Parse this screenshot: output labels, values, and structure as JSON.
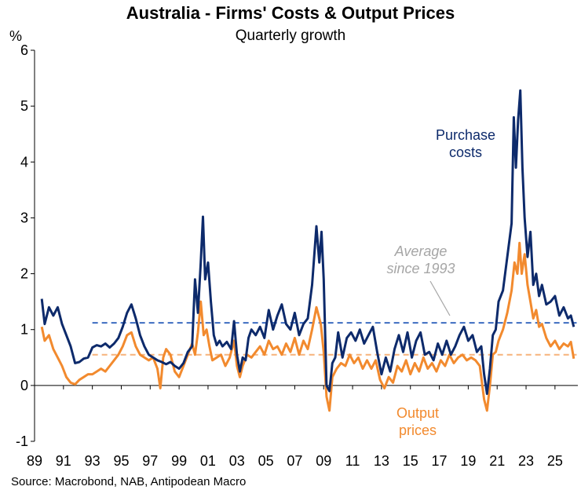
{
  "chart_data": {
    "type": "line",
    "title": "Australia - Firms' Costs & Output Prices",
    "subtitle": "Quarterly growth",
    "ylabel": "%",
    "xlabel": "",
    "ylim": [
      -1,
      6
    ],
    "xlim": [
      1989.0,
      2026.8
    ],
    "yticks": [
      "6",
      "5",
      "4",
      "3",
      "2",
      "1",
      "0",
      "-1"
    ],
    "xticks": [
      "89",
      "91",
      "93",
      "95",
      "97",
      "99",
      "01",
      "03",
      "05",
      "07",
      "09",
      "11",
      "13",
      "15",
      "17",
      "19",
      "21",
      "23",
      "25"
    ],
    "grid": false,
    "source": "Source: Macrobond, NAB, Antipodean Macro",
    "colors": {
      "purchase": "#0d2a6b",
      "output": "#f28a2e",
      "purchase_avg": "#3d6cc0",
      "output_avg": "#f6b27a",
      "annotation": "#a6a6a6"
    },
    "annotations": {
      "purchase_label": [
        "Purchase",
        "costs"
      ],
      "output_label": [
        "Output",
        "prices"
      ],
      "average_label": [
        "Average",
        "since 1993"
      ]
    },
    "averages": {
      "purchase_costs": {
        "value": 1.12,
        "x_start": 1993.0,
        "x_end": 2026.5
      },
      "output_prices": {
        "value": 0.55,
        "x_start": 1993.0,
        "x_end": 2026.5
      }
    },
    "series": [
      {
        "name": "Purchase costs",
        "points": [
          [
            1989.5,
            1.55
          ],
          [
            1989.7,
            1.1
          ],
          [
            1990.0,
            1.4
          ],
          [
            1990.3,
            1.25
          ],
          [
            1990.6,
            1.4
          ],
          [
            1990.9,
            1.1
          ],
          [
            1991.2,
            0.9
          ],
          [
            1991.5,
            0.7
          ],
          [
            1991.8,
            0.4
          ],
          [
            1992.1,
            0.42
          ],
          [
            1992.4,
            0.48
          ],
          [
            1992.7,
            0.5
          ],
          [
            1993.0,
            0.68
          ],
          [
            1993.3,
            0.72
          ],
          [
            1993.6,
            0.7
          ],
          [
            1993.9,
            0.75
          ],
          [
            1994.2,
            0.68
          ],
          [
            1994.5,
            0.75
          ],
          [
            1994.8,
            0.85
          ],
          [
            1995.1,
            1.05
          ],
          [
            1995.4,
            1.3
          ],
          [
            1995.7,
            1.45
          ],
          [
            1996.0,
            1.2
          ],
          [
            1996.3,
            0.9
          ],
          [
            1996.6,
            0.7
          ],
          [
            1996.9,
            0.55
          ],
          [
            1997.2,
            0.5
          ],
          [
            1997.5,
            0.45
          ],
          [
            1997.8,
            0.42
          ],
          [
            1998.1,
            0.38
          ],
          [
            1998.4,
            0.42
          ],
          [
            1998.7,
            0.35
          ],
          [
            1999.0,
            0.3
          ],
          [
            1999.3,
            0.4
          ],
          [
            1999.6,
            0.6
          ],
          [
            1999.9,
            0.7
          ],
          [
            2000.1,
            1.9
          ],
          [
            2000.3,
            1.3
          ],
          [
            2000.5,
            2.2
          ],
          [
            2000.65,
            3.02
          ],
          [
            2000.8,
            1.9
          ],
          [
            2001.0,
            2.2
          ],
          [
            2001.2,
            1.5
          ],
          [
            2001.4,
            0.9
          ],
          [
            2001.6,
            0.72
          ],
          [
            2001.8,
            0.8
          ],
          [
            2002.0,
            0.7
          ],
          [
            2002.3,
            0.78
          ],
          [
            2002.6,
            0.65
          ],
          [
            2002.8,
            1.15
          ],
          [
            2003.0,
            0.55
          ],
          [
            2003.2,
            0.25
          ],
          [
            2003.4,
            0.5
          ],
          [
            2003.6,
            0.45
          ],
          [
            2003.8,
            0.85
          ],
          [
            2004.0,
            1.0
          ],
          [
            2004.3,
            0.9
          ],
          [
            2004.6,
            1.05
          ],
          [
            2004.9,
            0.85
          ],
          [
            2005.2,
            1.35
          ],
          [
            2005.5,
            1.0
          ],
          [
            2005.8,
            1.25
          ],
          [
            2006.1,
            1.45
          ],
          [
            2006.4,
            1.1
          ],
          [
            2006.7,
            1.0
          ],
          [
            2007.0,
            1.3
          ],
          [
            2007.3,
            0.9
          ],
          [
            2007.6,
            1.1
          ],
          [
            2007.9,
            1.2
          ],
          [
            2008.2,
            1.8
          ],
          [
            2008.5,
            2.85
          ],
          [
            2008.7,
            2.2
          ],
          [
            2008.85,
            2.75
          ],
          [
            2009.0,
            1.9
          ],
          [
            2009.2,
            0.0
          ],
          [
            2009.4,
            -0.1
          ],
          [
            2009.6,
            0.4
          ],
          [
            2009.8,
            0.5
          ],
          [
            2010.0,
            0.95
          ],
          [
            2010.3,
            0.5
          ],
          [
            2010.6,
            0.85
          ],
          [
            2010.9,
            0.95
          ],
          [
            2011.2,
            0.8
          ],
          [
            2011.5,
            1.0
          ],
          [
            2011.8,
            0.75
          ],
          [
            2012.1,
            0.9
          ],
          [
            2012.4,
            1.05
          ],
          [
            2012.7,
            0.6
          ],
          [
            2013.0,
            0.2
          ],
          [
            2013.3,
            0.5
          ],
          [
            2013.6,
            0.25
          ],
          [
            2013.9,
            0.65
          ],
          [
            2014.2,
            0.9
          ],
          [
            2014.5,
            0.6
          ],
          [
            2014.8,
            0.95
          ],
          [
            2015.1,
            0.5
          ],
          [
            2015.4,
            0.8
          ],
          [
            2015.7,
            0.95
          ],
          [
            2016.0,
            0.55
          ],
          [
            2016.3,
            0.6
          ],
          [
            2016.6,
            0.45
          ],
          [
            2016.9,
            0.75
          ],
          [
            2017.2,
            0.55
          ],
          [
            2017.5,
            0.8
          ],
          [
            2017.8,
            0.55
          ],
          [
            2018.1,
            0.7
          ],
          [
            2018.4,
            0.9
          ],
          [
            2018.7,
            1.05
          ],
          [
            2019.0,
            0.8
          ],
          [
            2019.3,
            0.9
          ],
          [
            2019.6,
            0.6
          ],
          [
            2019.9,
            0.7
          ],
          [
            2020.1,
            0.2
          ],
          [
            2020.3,
            -0.15
          ],
          [
            2020.5,
            0.3
          ],
          [
            2020.7,
            0.9
          ],
          [
            2020.9,
            1.0
          ],
          [
            2021.1,
            1.5
          ],
          [
            2021.4,
            1.7
          ],
          [
            2021.7,
            2.3
          ],
          [
            2022.0,
            2.9
          ],
          [
            2022.15,
            4.8
          ],
          [
            2022.3,
            3.9
          ],
          [
            2022.45,
            4.75
          ],
          [
            2022.6,
            5.28
          ],
          [
            2022.75,
            3.9
          ],
          [
            2022.9,
            3.0
          ],
          [
            2023.1,
            2.3
          ],
          [
            2023.3,
            2.75
          ],
          [
            2023.5,
            1.8
          ],
          [
            2023.7,
            2.0
          ],
          [
            2023.9,
            1.6
          ],
          [
            2024.1,
            1.8
          ],
          [
            2024.4,
            1.45
          ],
          [
            2024.7,
            1.5
          ],
          [
            2025.0,
            1.6
          ],
          [
            2025.3,
            1.25
          ],
          [
            2025.6,
            1.4
          ],
          [
            2025.9,
            1.2
          ],
          [
            2026.1,
            1.25
          ],
          [
            2026.3,
            1.05
          ]
        ]
      },
      {
        "name": "Output prices",
        "points": [
          [
            1989.5,
            1.05
          ],
          [
            1989.7,
            0.8
          ],
          [
            1990.0,
            0.9
          ],
          [
            1990.3,
            0.65
          ],
          [
            1990.6,
            0.5
          ],
          [
            1990.9,
            0.35
          ],
          [
            1991.2,
            0.15
          ],
          [
            1991.5,
            0.05
          ],
          [
            1991.8,
            0.02
          ],
          [
            1992.1,
            0.1
          ],
          [
            1992.4,
            0.15
          ],
          [
            1992.7,
            0.2
          ],
          [
            1993.0,
            0.2
          ],
          [
            1993.3,
            0.25
          ],
          [
            1993.6,
            0.3
          ],
          [
            1993.9,
            0.25
          ],
          [
            1994.2,
            0.35
          ],
          [
            1994.5,
            0.45
          ],
          [
            1994.8,
            0.55
          ],
          [
            1995.1,
            0.7
          ],
          [
            1995.4,
            0.9
          ],
          [
            1995.7,
            0.95
          ],
          [
            1996.0,
            0.7
          ],
          [
            1996.3,
            0.55
          ],
          [
            1996.6,
            0.5
          ],
          [
            1996.9,
            0.45
          ],
          [
            1997.2,
            0.5
          ],
          [
            1997.5,
            0.3
          ],
          [
            1997.7,
            -0.05
          ],
          [
            1997.9,
            0.5
          ],
          [
            1998.1,
            0.65
          ],
          [
            1998.4,
            0.55
          ],
          [
            1998.7,
            0.25
          ],
          [
            1999.0,
            0.15
          ],
          [
            1999.3,
            0.35
          ],
          [
            1999.6,
            0.55
          ],
          [
            1999.9,
            0.75
          ],
          [
            2000.1,
            0.55
          ],
          [
            2000.3,
            0.95
          ],
          [
            2000.5,
            1.5
          ],
          [
            2000.7,
            0.9
          ],
          [
            2000.9,
            1.0
          ],
          [
            2001.1,
            0.7
          ],
          [
            2001.3,
            0.45
          ],
          [
            2001.6,
            0.5
          ],
          [
            2001.9,
            0.55
          ],
          [
            2002.2,
            0.35
          ],
          [
            2002.5,
            0.5
          ],
          [
            2002.8,
            0.8
          ],
          [
            2003.0,
            0.35
          ],
          [
            2003.2,
            0.15
          ],
          [
            2003.4,
            0.35
          ],
          [
            2003.7,
            0.55
          ],
          [
            2004.0,
            0.5
          ],
          [
            2004.3,
            0.6
          ],
          [
            2004.6,
            0.7
          ],
          [
            2004.9,
            0.55
          ],
          [
            2005.2,
            0.8
          ],
          [
            2005.5,
            0.65
          ],
          [
            2005.8,
            0.7
          ],
          [
            2006.1,
            0.55
          ],
          [
            2006.4,
            0.75
          ],
          [
            2006.7,
            0.6
          ],
          [
            2007.0,
            0.85
          ],
          [
            2007.3,
            0.55
          ],
          [
            2007.6,
            0.8
          ],
          [
            2007.9,
            0.65
          ],
          [
            2008.2,
            1.0
          ],
          [
            2008.5,
            1.4
          ],
          [
            2008.8,
            1.1
          ],
          [
            2009.0,
            0.6
          ],
          [
            2009.2,
            -0.2
          ],
          [
            2009.4,
            -0.45
          ],
          [
            2009.6,
            0.15
          ],
          [
            2009.9,
            0.3
          ],
          [
            2010.2,
            0.4
          ],
          [
            2010.5,
            0.35
          ],
          [
            2010.8,
            0.55
          ],
          [
            2011.1,
            0.4
          ],
          [
            2011.4,
            0.5
          ],
          [
            2011.7,
            0.3
          ],
          [
            2012.0,
            0.45
          ],
          [
            2012.3,
            0.3
          ],
          [
            2012.6,
            0.45
          ],
          [
            2012.9,
            0.1
          ],
          [
            2013.2,
            -0.05
          ],
          [
            2013.5,
            0.15
          ],
          [
            2013.8,
            0.05
          ],
          [
            2014.1,
            0.35
          ],
          [
            2014.4,
            0.25
          ],
          [
            2014.7,
            0.45
          ],
          [
            2015.0,
            0.2
          ],
          [
            2015.3,
            0.4
          ],
          [
            2015.6,
            0.25
          ],
          [
            2015.9,
            0.5
          ],
          [
            2016.2,
            0.3
          ],
          [
            2016.5,
            0.4
          ],
          [
            2016.8,
            0.25
          ],
          [
            2017.1,
            0.45
          ],
          [
            2017.4,
            0.35
          ],
          [
            2017.7,
            0.55
          ],
          [
            2018.0,
            0.4
          ],
          [
            2018.3,
            0.5
          ],
          [
            2018.6,
            0.55
          ],
          [
            2018.9,
            0.45
          ],
          [
            2019.2,
            0.5
          ],
          [
            2019.5,
            0.45
          ],
          [
            2019.8,
            0.35
          ],
          [
            2020.1,
            -0.25
          ],
          [
            2020.3,
            -0.45
          ],
          [
            2020.5,
            0.0
          ],
          [
            2020.7,
            0.55
          ],
          [
            2020.9,
            0.6
          ],
          [
            2021.1,
            0.8
          ],
          [
            2021.4,
            1.0
          ],
          [
            2021.7,
            1.3
          ],
          [
            2022.0,
            1.7
          ],
          [
            2022.2,
            2.2
          ],
          [
            2022.4,
            2.0
          ],
          [
            2022.55,
            2.55
          ],
          [
            2022.7,
            2.0
          ],
          [
            2022.9,
            2.35
          ],
          [
            2023.1,
            1.8
          ],
          [
            2023.3,
            1.5
          ],
          [
            2023.5,
            1.2
          ],
          [
            2023.7,
            1.35
          ],
          [
            2023.9,
            1.05
          ],
          [
            2024.1,
            1.1
          ],
          [
            2024.4,
            0.85
          ],
          [
            2024.7,
            0.7
          ],
          [
            2025.0,
            0.8
          ],
          [
            2025.3,
            0.65
          ],
          [
            2025.6,
            0.75
          ],
          [
            2025.9,
            0.7
          ],
          [
            2026.1,
            0.78
          ],
          [
            2026.3,
            0.48
          ]
        ]
      }
    ]
  }
}
